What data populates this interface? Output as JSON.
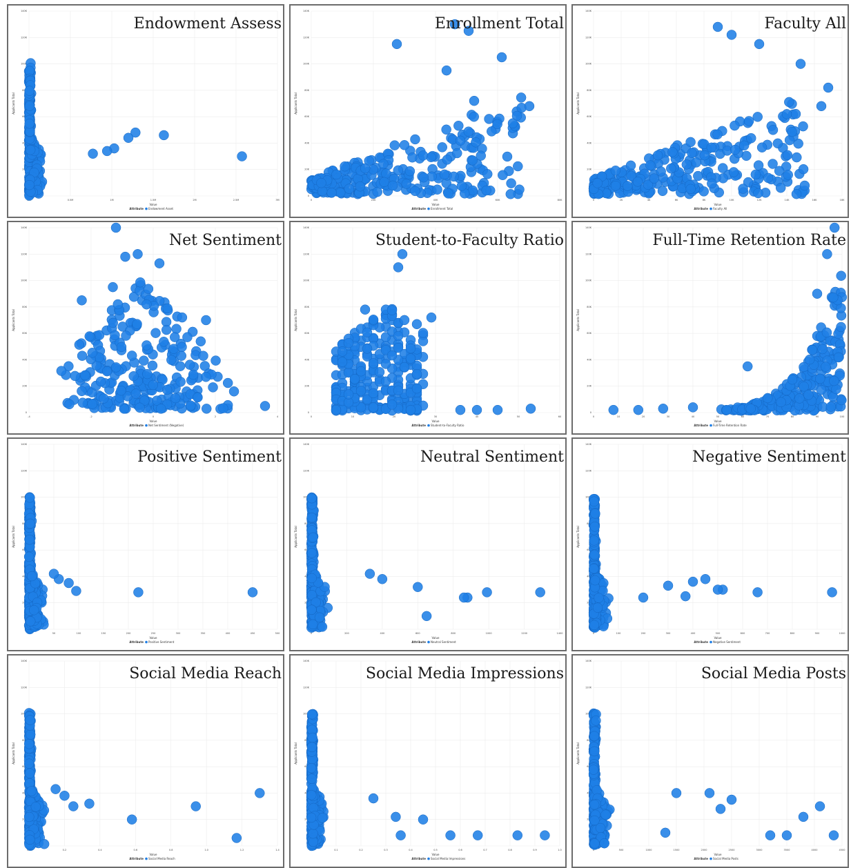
{
  "colors": {
    "point": "#1f7fe6",
    "point_stroke": "#1466c2",
    "grid": "#ececec",
    "border": "#6b6b6b"
  },
  "chart_data": [
    {
      "type": "scatter",
      "title": "Endowment Assess",
      "xlabel": "Value",
      "ylabel": "Applicants Total",
      "legend_title": "Attribute",
      "legend": "Endowment Asset",
      "xlim": [
        0,
        3.5
      ],
      "ylim": [
        0,
        140000
      ],
      "x_ticks": [
        "0M",
        "0.5M",
        "1M",
        "1.5M",
        "2M",
        "2.5M",
        "3M"
      ],
      "y_ticks": [
        "0",
        "20K",
        "40K",
        "60K",
        "80K",
        "100K",
        "120K",
        "140K"
      ],
      "shape": "L",
      "points": [
        [
          1.9,
          46000
        ],
        [
          1.5,
          48000
        ],
        [
          1.4,
          44000
        ],
        [
          1.2,
          36000
        ],
        [
          1.1,
          34000
        ],
        [
          0.9,
          32000
        ],
        [
          3.0,
          30000
        ]
      ]
    },
    {
      "type": "scatter",
      "title": "Enrollment Total",
      "xlabel": "Value",
      "ylabel": "Applicants Total",
      "legend_title": "Attribute",
      "legend": "Enrollment Total",
      "xlim": [
        0,
        90000
      ],
      "ylim": [
        0,
        140000
      ],
      "x_ticks": [
        "0",
        "20K",
        "40K",
        "60K",
        "80K"
      ],
      "y_ticks": [
        "0",
        "20K",
        "40K",
        "60K",
        "80K",
        "100K",
        "120K",
        "140K"
      ],
      "shape": "rising",
      "points": [
        [
          52000,
          130000
        ],
        [
          57000,
          125000
        ],
        [
          69000,
          105000
        ],
        [
          49000,
          95000
        ],
        [
          31000,
          115000
        ],
        [
          59000,
          72000
        ],
        [
          79000,
          68000
        ],
        [
          73000,
          55000
        ]
      ]
    },
    {
      "type": "scatter",
      "title": "Faculty All",
      "xlabel": "Value",
      "ylabel": "Applicants Total",
      "legend_title": "Attribute",
      "legend": "Faculty All",
      "xlim": [
        0,
        18000
      ],
      "ylim": [
        0,
        140000
      ],
      "x_ticks": [
        "0",
        "2K",
        "4K",
        "6K",
        "8K",
        "10K",
        "12K",
        "14K",
        "16K",
        "18K"
      ],
      "y_ticks": [
        "0",
        "20K",
        "40K",
        "60K",
        "80K",
        "100K",
        "120K",
        "140K"
      ],
      "shape": "rising",
      "points": [
        [
          10000,
          122000
        ],
        [
          9000,
          128000
        ],
        [
          12000,
          115000
        ],
        [
          15000,
          100000
        ],
        [
          17000,
          82000
        ],
        [
          16500,
          68000
        ],
        [
          14000,
          62000
        ],
        [
          13000,
          50000
        ]
      ]
    },
    {
      "type": "scatter",
      "title": "Net Sentiment",
      "xlabel": "Value",
      "ylabel": "Applicants Total",
      "legend_title": "Attribute",
      "legend": "Net Sentiment (Negative)",
      "xlim": [
        -4,
        4
      ],
      "ylim": [
        0,
        140000
      ],
      "x_ticks": [
        "-4",
        "-2",
        "0",
        "2",
        "4"
      ],
      "y_ticks": [
        "0",
        "20K",
        "40K",
        "60K",
        "80K",
        "100K",
        "120K",
        "140K"
      ],
      "shape": "triangle",
      "points": [
        [
          -1.2,
          140000
        ],
        [
          -0.5,
          120000
        ],
        [
          -0.9,
          118000
        ],
        [
          0.2,
          113000
        ],
        [
          -1.3,
          95000
        ],
        [
          -2.3,
          85000
        ],
        [
          1.7,
          70000
        ],
        [
          3.6,
          5000
        ]
      ]
    },
    {
      "type": "scatter",
      "title": "Student-to-Faculty Ratio",
      "xlabel": "Value",
      "ylabel": "Applicants Total",
      "legend_title": "Attribute",
      "legend": "Student-to-Faculty Ratio",
      "xlim": [
        0,
        60
      ],
      "ylim": [
        0,
        140000
      ],
      "x_ticks": [
        "0",
        "10",
        "20",
        "30",
        "40",
        "50",
        "60"
      ],
      "y_ticks": [
        "0",
        "20K",
        "40K",
        "60K",
        "80K",
        "100K",
        "120K",
        "140K"
      ],
      "shape": "columns",
      "points": [
        [
          22,
          120000
        ],
        [
          21,
          110000
        ],
        [
          13,
          78000
        ],
        [
          29,
          72000
        ],
        [
          53,
          3000
        ],
        [
          45,
          2000
        ],
        [
          40,
          2000
        ],
        [
          36,
          2000
        ]
      ]
    },
    {
      "type": "scatter",
      "title": "Full-Time Retention Rate",
      "xlabel": "Value",
      "ylabel": "Applicants Total",
      "legend_title": "Attribute",
      "legend": "Full-Time Retention Rate",
      "xlim": [
        0,
        100
      ],
      "ylim": [
        0,
        140000
      ],
      "x_ticks": [
        "0",
        "10",
        "20",
        "30",
        "40",
        "50",
        "60",
        "70",
        "80",
        "90",
        "100"
      ],
      "y_ticks": [
        "0",
        "20K",
        "40K",
        "60K",
        "80K",
        "100K",
        "120K",
        "140K"
      ],
      "shape": "exp",
      "points": [
        [
          94,
          120000
        ],
        [
          97,
          140000
        ],
        [
          90,
          90000
        ],
        [
          62,
          35000
        ],
        [
          8,
          2000
        ],
        [
          18,
          2000
        ],
        [
          28,
          3000
        ],
        [
          40,
          4000
        ]
      ]
    },
    {
      "type": "scatter",
      "title": "Positive Sentiment",
      "xlabel": "Value",
      "ylabel": "Applicants Total",
      "legend_title": "Attribute",
      "legend": "Positive Sentiment",
      "xlim": [
        0,
        500
      ],
      "ylim": [
        0,
        140000
      ],
      "x_ticks": [
        "0",
        "50",
        "100",
        "150",
        "200",
        "250",
        "300",
        "350",
        "400",
        "450",
        "500"
      ],
      "y_ticks": [
        "0",
        "20K",
        "40K",
        "60K",
        "80K",
        "100K",
        "120K",
        "140K"
      ],
      "shape": "L",
      "points": [
        [
          220,
          28000
        ],
        [
          450,
          28000
        ],
        [
          95,
          29000
        ],
        [
          80,
          35000
        ],
        [
          60,
          38000
        ],
        [
          50,
          42000
        ]
      ]
    },
    {
      "type": "scatter",
      "title": "Neutral Sentiment",
      "xlabel": "Value",
      "ylabel": "Applicants Total",
      "legend_title": "Attribute",
      "legend": "Neutral Sentiment",
      "xlim": [
        0,
        1400
      ],
      "ylim": [
        0,
        140000
      ],
      "x_ticks": [
        "0",
        "200",
        "400",
        "600",
        "800",
        "1000",
        "1200",
        "1400"
      ],
      "y_ticks": [
        "0",
        "20K",
        "40K",
        "60K",
        "80K",
        "100K",
        "120K",
        "140K"
      ],
      "shape": "L",
      "points": [
        [
          1290,
          28000
        ],
        [
          990,
          28000
        ],
        [
          880,
          24000
        ],
        [
          860,
          24000
        ],
        [
          600,
          32000
        ],
        [
          400,
          38000
        ],
        [
          330,
          42000
        ],
        [
          650,
          10000
        ]
      ]
    },
    {
      "type": "scatter",
      "title": "Negative Sentiment",
      "xlabel": "Value",
      "ylabel": "Applicants Total",
      "legend_title": "Attribute",
      "legend": "Negative Sentiment",
      "xlim": [
        0,
        1000
      ],
      "ylim": [
        0,
        140000
      ],
      "x_ticks": [
        "0",
        "100",
        "200",
        "300",
        "400",
        "500",
        "600",
        "700",
        "800",
        "900",
        "1000"
      ],
      "y_ticks": [
        "0",
        "20K",
        "40K",
        "60K",
        "80K",
        "100K",
        "120K",
        "140K"
      ],
      "shape": "L",
      "points": [
        [
          960,
          28000
        ],
        [
          660,
          28000
        ],
        [
          520,
          30000
        ],
        [
          500,
          30000
        ],
        [
          450,
          38000
        ],
        [
          400,
          36000
        ],
        [
          370,
          25000
        ],
        [
          300,
          33000
        ],
        [
          200,
          24000
        ]
      ]
    },
    {
      "type": "scatter",
      "title": "Social Media Reach",
      "xlabel": "Value",
      "ylabel": "Applicants Total",
      "legend_title": "Attribute",
      "legend": "Social Media Reach",
      "xlim": [
        0,
        1.4
      ],
      "ylim": [
        0,
        140000
      ],
      "x_ticks": [
        "0.0",
        "0.2",
        "0.4",
        "0.6",
        "0.8",
        "1.0",
        "1.2",
        "1.4"
      ],
      "y_ticks": [
        "0",
        "20K",
        "40K",
        "60K",
        "80K",
        "100K",
        "120K",
        "140K"
      ],
      "shape": "L",
      "points": [
        [
          1.3,
          40000
        ],
        [
          0.94,
          30000
        ],
        [
          1.17,
          6000
        ],
        [
          0.58,
          20000
        ],
        [
          0.34,
          32000
        ],
        [
          0.25,
          30000
        ],
        [
          0.2,
          38000
        ],
        [
          0.15,
          43000
        ]
      ]
    },
    {
      "type": "scatter",
      "title": "Social Media Impressions",
      "xlabel": "Value",
      "ylabel": "Applicants Total",
      "legend_title": "Attribute",
      "legend": "Social Media Impressions",
      "xlim": [
        0,
        1.0
      ],
      "ylim": [
        0,
        140000
      ],
      "x_ticks": [
        "0.0",
        "0.1",
        "0.2",
        "0.3",
        "0.4",
        "0.5",
        "0.6",
        "0.7",
        "0.8",
        "0.9",
        "1.0"
      ],
      "y_ticks": [
        "0",
        "20K",
        "40K",
        "60K",
        "80K",
        "100K",
        "120K",
        "140K"
      ],
      "shape": "L",
      "points": [
        [
          0.94,
          8000
        ],
        [
          0.83,
          8000
        ],
        [
          0.67,
          8000
        ],
        [
          0.56,
          8000
        ],
        [
          0.45,
          20000
        ],
        [
          0.36,
          8000
        ],
        [
          0.34,
          22000
        ],
        [
          0.25,
          36000
        ]
      ]
    },
    {
      "type": "scatter",
      "title": "Social Media Posts",
      "xlabel": "Value",
      "ylabel": "Applicants Total",
      "legend_title": "Attribute",
      "legend": "Social Media Posts",
      "xlim": [
        0,
        4500
      ],
      "ylim": [
        0,
        140000
      ],
      "x_ticks": [
        "0",
        "500",
        "1000",
        "1500",
        "2000",
        "2500",
        "3000",
        "3500",
        "4000",
        "4500"
      ],
      "y_ticks": [
        "0",
        "20K",
        "40K",
        "60K",
        "80K",
        "100K",
        "120K",
        "140K"
      ],
      "shape": "L",
      "points": [
        [
          4350,
          8000
        ],
        [
          4100,
          30000
        ],
        [
          3800,
          22000
        ],
        [
          3500,
          8000
        ],
        [
          3200,
          8000
        ],
        [
          2500,
          35000
        ],
        [
          2300,
          28000
        ],
        [
          2100,
          40000
        ],
        [
          1500,
          40000
        ],
        [
          1300,
          10000
        ]
      ]
    }
  ]
}
